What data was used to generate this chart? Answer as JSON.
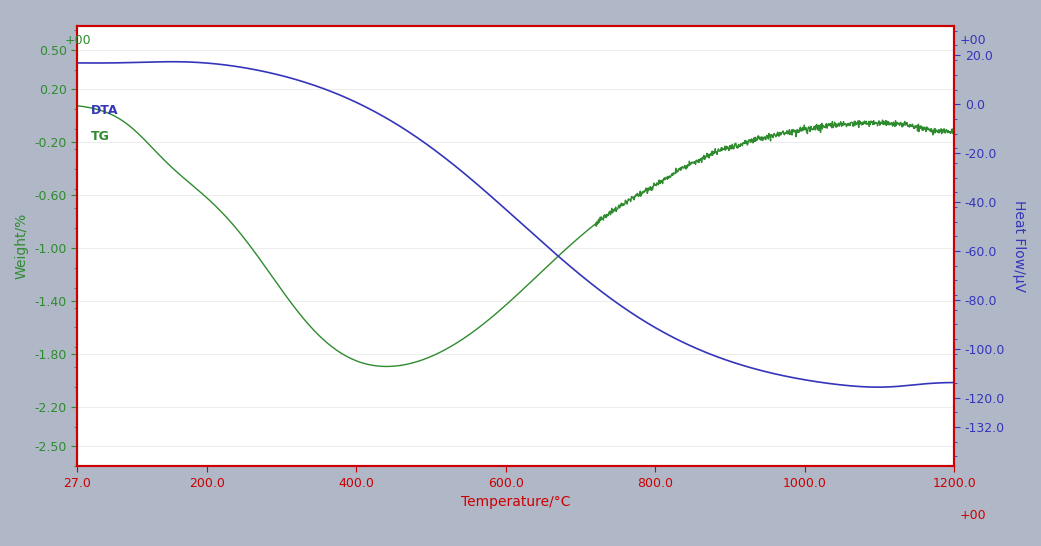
{
  "bg_color": "#b0b8c8",
  "plot_bg_color": "#ffffff",
  "border_color": "#cc0000",
  "x_min": 27.0,
  "x_max": 1200.0,
  "x_ticks": [
    27.0,
    200.0,
    400.0,
    600.0,
    800.0,
    1000.0,
    1200.0
  ],
  "xlabel": "Temperature/°C",
  "xlabel_color": "#cc0000",
  "x_tick_color": "#cc0000",
  "ylabel_left": "Weight/%",
  "ylabel_left_color": "#2e8b2e",
  "ylabel_right": "Heat Flow/μV",
  "ylabel_right_color": "#3535bb",
  "yticks_left": [
    0.5,
    0.2,
    -0.2,
    -0.6,
    -1.0,
    -1.4,
    -1.8,
    -2.2,
    -2.5
  ],
  "ylim_left": [
    -2.65,
    0.68
  ],
  "ytick_labels_left": [
    "0.50",
    "0.20",
    "-0.20",
    "-0.60",
    "-1.00",
    "-1.40",
    "-1.80",
    "-2.20",
    "-2.50"
  ],
  "yticks_right": [
    20.0,
    0.0,
    -20.0,
    -40.0,
    -60.0,
    -80.0,
    -100.0,
    -120.0,
    -132.0
  ],
  "ytick_labels_right": [
    "20.0",
    "0.0",
    "-20.0",
    "-40.0",
    "-60.0",
    "-80.0",
    "-100.0",
    "-120.0",
    "-132.0"
  ],
  "ylim_right": [
    -148.0,
    32.0
  ],
  "dta_label": "DTA",
  "tg_label": "TG",
  "dta_color": "#3535bb",
  "tg_color": "#2e8b2e",
  "top_label_left": "+00",
  "top_label_right": "+00",
  "bottom_label_right": "+00"
}
